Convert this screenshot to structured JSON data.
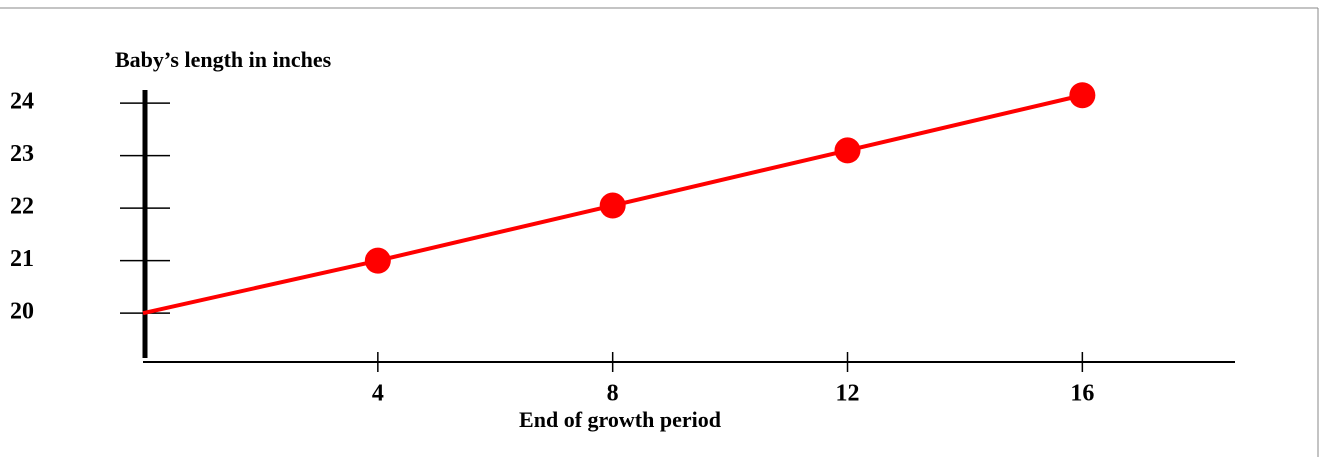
{
  "chart_data": {
    "type": "line",
    "title": "Baby’s length in inches",
    "x_label": "End of growth period",
    "series": [
      {
        "color": "#ff0000",
        "x": [
          0,
          4,
          8,
          12,
          16
        ],
        "values": [
          20,
          21,
          22.05,
          23.1,
          24.15
        ]
      }
    ],
    "xlim": [
      0,
      18.6
    ],
    "xticks": [
      4,
      8,
      12,
      16
    ],
    "ylim": [
      19.07,
      24.25
    ],
    "yticks": [
      20,
      21,
      22,
      23,
      24
    ]
  }
}
